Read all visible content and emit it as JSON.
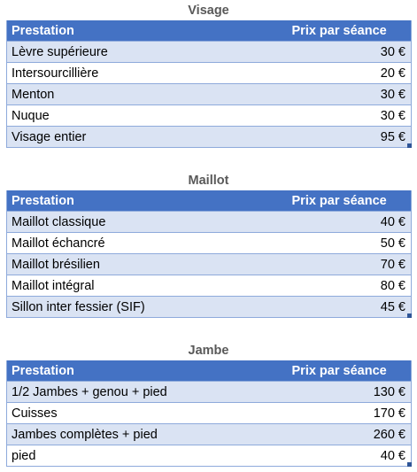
{
  "sections": [
    {
      "title": "Visage",
      "headers": [
        "Prestation",
        "Prix par séance"
      ],
      "rows": [
        [
          "Lèvre supérieure",
          "30 €"
        ],
        [
          "Intersourcillière",
          "20 €"
        ],
        [
          "Menton",
          "30 €"
        ],
        [
          "Nuque",
          "30 €"
        ],
        [
          "Visage entier",
          "95 €"
        ]
      ]
    },
    {
      "title": "Maillot",
      "headers": [
        "Prestation",
        "Prix par séance"
      ],
      "rows": [
        [
          "Maillot classique",
          "40 €"
        ],
        [
          "Maillot échancré",
          "50 €"
        ],
        [
          "Maillot brésilien",
          "70 €"
        ],
        [
          "Maillot intégral",
          "80 €"
        ],
        [
          "Sillon inter fessier (SIF)",
          "45 €"
        ]
      ]
    },
    {
      "title": "Jambe",
      "headers": [
        "Prestation",
        "Prix par séance"
      ],
      "rows": [
        [
          "1/2 Jambes + genou + pied",
          "130 €"
        ],
        [
          "Cuisses",
          "170 €"
        ],
        [
          "Jambes complètes + pied",
          "260 €"
        ],
        [
          "pied",
          "40 €"
        ]
      ]
    }
  ],
  "colors": {
    "header_bg": "#4472c4",
    "band_bg": "#dae3f3",
    "title_text": "#595959"
  }
}
